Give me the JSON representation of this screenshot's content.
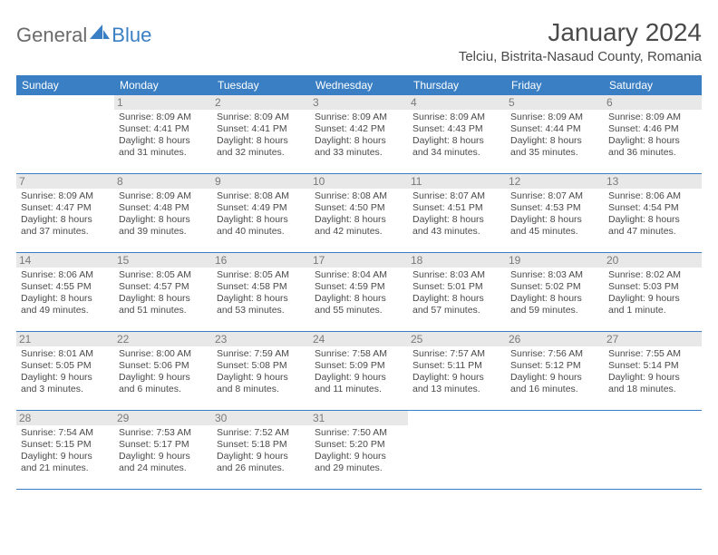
{
  "logo": {
    "general": "General",
    "blue": "Blue"
  },
  "title": "January 2024",
  "location": "Telciu, Bistrita-Nasaud County, Romania",
  "weekdays": [
    "Sunday",
    "Monday",
    "Tuesday",
    "Wednesday",
    "Thursday",
    "Friday",
    "Saturday"
  ],
  "colors": {
    "brand_blue": "#3a7fc4",
    "text_gray": "#4a4a4a",
    "daynum_gray": "#7a7a7a",
    "daynum_bg": "#e8e8e8",
    "logo_gray": "#6b6b6b",
    "background": "#ffffff"
  },
  "weeks": [
    [
      {
        "empty": true
      },
      {
        "n": "1",
        "sr": "Sunrise: 8:09 AM",
        "ss": "Sunset: 4:41 PM",
        "d1": "Daylight: 8 hours",
        "d2": "and 31 minutes."
      },
      {
        "n": "2",
        "sr": "Sunrise: 8:09 AM",
        "ss": "Sunset: 4:41 PM",
        "d1": "Daylight: 8 hours",
        "d2": "and 32 minutes."
      },
      {
        "n": "3",
        "sr": "Sunrise: 8:09 AM",
        "ss": "Sunset: 4:42 PM",
        "d1": "Daylight: 8 hours",
        "d2": "and 33 minutes."
      },
      {
        "n": "4",
        "sr": "Sunrise: 8:09 AM",
        "ss": "Sunset: 4:43 PM",
        "d1": "Daylight: 8 hours",
        "d2": "and 34 minutes."
      },
      {
        "n": "5",
        "sr": "Sunrise: 8:09 AM",
        "ss": "Sunset: 4:44 PM",
        "d1": "Daylight: 8 hours",
        "d2": "and 35 minutes."
      },
      {
        "n": "6",
        "sr": "Sunrise: 8:09 AM",
        "ss": "Sunset: 4:46 PM",
        "d1": "Daylight: 8 hours",
        "d2": "and 36 minutes."
      }
    ],
    [
      {
        "n": "7",
        "sr": "Sunrise: 8:09 AM",
        "ss": "Sunset: 4:47 PM",
        "d1": "Daylight: 8 hours",
        "d2": "and 37 minutes."
      },
      {
        "n": "8",
        "sr": "Sunrise: 8:09 AM",
        "ss": "Sunset: 4:48 PM",
        "d1": "Daylight: 8 hours",
        "d2": "and 39 minutes."
      },
      {
        "n": "9",
        "sr": "Sunrise: 8:08 AM",
        "ss": "Sunset: 4:49 PM",
        "d1": "Daylight: 8 hours",
        "d2": "and 40 minutes."
      },
      {
        "n": "10",
        "sr": "Sunrise: 8:08 AM",
        "ss": "Sunset: 4:50 PM",
        "d1": "Daylight: 8 hours",
        "d2": "and 42 minutes."
      },
      {
        "n": "11",
        "sr": "Sunrise: 8:07 AM",
        "ss": "Sunset: 4:51 PM",
        "d1": "Daylight: 8 hours",
        "d2": "and 43 minutes."
      },
      {
        "n": "12",
        "sr": "Sunrise: 8:07 AM",
        "ss": "Sunset: 4:53 PM",
        "d1": "Daylight: 8 hours",
        "d2": "and 45 minutes."
      },
      {
        "n": "13",
        "sr": "Sunrise: 8:06 AM",
        "ss": "Sunset: 4:54 PM",
        "d1": "Daylight: 8 hours",
        "d2": "and 47 minutes."
      }
    ],
    [
      {
        "n": "14",
        "sr": "Sunrise: 8:06 AM",
        "ss": "Sunset: 4:55 PM",
        "d1": "Daylight: 8 hours",
        "d2": "and 49 minutes."
      },
      {
        "n": "15",
        "sr": "Sunrise: 8:05 AM",
        "ss": "Sunset: 4:57 PM",
        "d1": "Daylight: 8 hours",
        "d2": "and 51 minutes."
      },
      {
        "n": "16",
        "sr": "Sunrise: 8:05 AM",
        "ss": "Sunset: 4:58 PM",
        "d1": "Daylight: 8 hours",
        "d2": "and 53 minutes."
      },
      {
        "n": "17",
        "sr": "Sunrise: 8:04 AM",
        "ss": "Sunset: 4:59 PM",
        "d1": "Daylight: 8 hours",
        "d2": "and 55 minutes."
      },
      {
        "n": "18",
        "sr": "Sunrise: 8:03 AM",
        "ss": "Sunset: 5:01 PM",
        "d1": "Daylight: 8 hours",
        "d2": "and 57 minutes."
      },
      {
        "n": "19",
        "sr": "Sunrise: 8:03 AM",
        "ss": "Sunset: 5:02 PM",
        "d1": "Daylight: 8 hours",
        "d2": "and 59 minutes."
      },
      {
        "n": "20",
        "sr": "Sunrise: 8:02 AM",
        "ss": "Sunset: 5:03 PM",
        "d1": "Daylight: 9 hours",
        "d2": "and 1 minute."
      }
    ],
    [
      {
        "n": "21",
        "sr": "Sunrise: 8:01 AM",
        "ss": "Sunset: 5:05 PM",
        "d1": "Daylight: 9 hours",
        "d2": "and 3 minutes."
      },
      {
        "n": "22",
        "sr": "Sunrise: 8:00 AM",
        "ss": "Sunset: 5:06 PM",
        "d1": "Daylight: 9 hours",
        "d2": "and 6 minutes."
      },
      {
        "n": "23",
        "sr": "Sunrise: 7:59 AM",
        "ss": "Sunset: 5:08 PM",
        "d1": "Daylight: 9 hours",
        "d2": "and 8 minutes."
      },
      {
        "n": "24",
        "sr": "Sunrise: 7:58 AM",
        "ss": "Sunset: 5:09 PM",
        "d1": "Daylight: 9 hours",
        "d2": "and 11 minutes."
      },
      {
        "n": "25",
        "sr": "Sunrise: 7:57 AM",
        "ss": "Sunset: 5:11 PM",
        "d1": "Daylight: 9 hours",
        "d2": "and 13 minutes."
      },
      {
        "n": "26",
        "sr": "Sunrise: 7:56 AM",
        "ss": "Sunset: 5:12 PM",
        "d1": "Daylight: 9 hours",
        "d2": "and 16 minutes."
      },
      {
        "n": "27",
        "sr": "Sunrise: 7:55 AM",
        "ss": "Sunset: 5:14 PM",
        "d1": "Daylight: 9 hours",
        "d2": "and 18 minutes."
      }
    ],
    [
      {
        "n": "28",
        "sr": "Sunrise: 7:54 AM",
        "ss": "Sunset: 5:15 PM",
        "d1": "Daylight: 9 hours",
        "d2": "and 21 minutes."
      },
      {
        "n": "29",
        "sr": "Sunrise: 7:53 AM",
        "ss": "Sunset: 5:17 PM",
        "d1": "Daylight: 9 hours",
        "d2": "and 24 minutes."
      },
      {
        "n": "30",
        "sr": "Sunrise: 7:52 AM",
        "ss": "Sunset: 5:18 PM",
        "d1": "Daylight: 9 hours",
        "d2": "and 26 minutes."
      },
      {
        "n": "31",
        "sr": "Sunrise: 7:50 AM",
        "ss": "Sunset: 5:20 PM",
        "d1": "Daylight: 9 hours",
        "d2": "and 29 minutes."
      },
      {
        "empty": true
      },
      {
        "empty": true
      },
      {
        "empty": true
      }
    ]
  ]
}
